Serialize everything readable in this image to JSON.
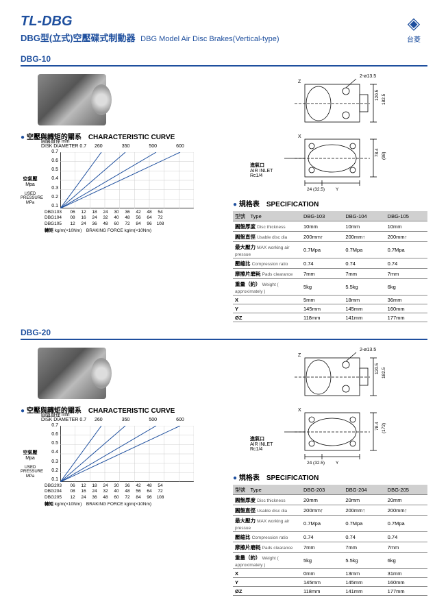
{
  "header": {
    "title": "TL-DBG",
    "subtitle_cn": "DBG型(立式)空壓碟式制動器",
    "subtitle_en": "DBG Model Air Disc Brakes(Vertical-type)",
    "logo_text": "台菱"
  },
  "sections": [
    {
      "model": "DBG-10",
      "curve_title_cn": "空壓與轉矩的關系",
      "curve_title_en": "CHARACTERISTIC CURVE",
      "chart": {
        "disk_label_cn": "圓盤直徑",
        "disk_label_unit": "mm",
        "disk_diameter_label": "DISK DIAMETER 0.7",
        "top_values": [
          "260",
          "350",
          "500",
          "600"
        ],
        "ylabel_cn": "空氣壓",
        "ylabel_unit": "Mpa",
        "ylabel_en": "USED PRESSURE",
        "ylabel_en_unit": "MPa",
        "yticks": [
          "0.7",
          "0.6",
          "0.5",
          "0.4",
          "0.3",
          "0.2",
          "0.1"
        ],
        "xrows": [
          {
            "label": "DBG103",
            "vals": [
              "06",
              "12",
              "18",
              "24",
              "30",
              "36",
              "42",
              "48",
              "54"
            ]
          },
          {
            "label": "DBG104",
            "vals": [
              "08",
              "16",
              "24",
              "32",
              "40",
              "48",
              "56",
              "64",
              "72"
            ]
          },
          {
            "label": "DBG105",
            "vals": [
              "12",
              "24",
              "36",
              "48",
              "60",
              "72",
              "84",
              "96",
              "108"
            ]
          }
        ],
        "xlabel_cn": "轉矩",
        "xlabel_unit": "kg/m(×10Nm)",
        "xlabel_en": "BRAKING FORCE kg/m(×10Nm)",
        "line_color": "#1e4f9e",
        "grid_color": "#ccc"
      },
      "drawing": {
        "callout_top": "2-ø13.5",
        "dim_right1": "120.5",
        "dim_right2": "182.5",
        "dim_bot1": "24 (32.5)",
        "dim_bot2": "Y",
        "dim_right3": "78.4",
        "dim_right4": "(98)",
        "air_inlet_cn": "進氣口",
        "air_inlet_en": "AIR INLET",
        "air_inlet_sub": "Rc1/4",
        "labels": {
          "z": "Z",
          "x": "X"
        }
      },
      "spec": {
        "title_cn": "規格表",
        "title_en": "SPECIFICATION",
        "header": [
          "型號　Type",
          "DBG-103",
          "DBG-104",
          "DBG-105"
        ],
        "rows": [
          {
            "label_cn": "圓盤厚度",
            "label_en": "Disc thickness",
            "vals": [
              "10mm",
              "10mm",
              "10mm"
            ]
          },
          {
            "label_cn": "圓盤直徑",
            "label_en": "Usable disc dia",
            "vals": [
              "200mm↑",
              "200mm↑",
              "200mm↑"
            ]
          },
          {
            "label_cn": "最大壓力",
            "label_en": "MAX working air pressue",
            "vals": [
              "0.7Mpa",
              "0.7Mpa",
              "0.7Mpa"
            ]
          },
          {
            "label_cn": "壓縮比",
            "label_en": "Compression ratio",
            "vals": [
              "0.74",
              "0.74",
              "0.74"
            ]
          },
          {
            "label_cn": "摩擦片磨耗",
            "label_en": "Pads clearance",
            "vals": [
              "7mm",
              "7mm",
              "7mm"
            ]
          },
          {
            "label_cn": "重量（約）",
            "label_en": "Weight ( approximately )",
            "vals": [
              "5kg",
              "5.5kg",
              "6kg"
            ]
          },
          {
            "label_cn": "X",
            "label_en": "",
            "vals": [
              "5mm",
              "18mm",
              "36mm"
            ]
          },
          {
            "label_cn": "Y",
            "label_en": "",
            "vals": [
              "145mm",
              "145mm",
              "160mm"
            ]
          },
          {
            "label_cn": "ØZ",
            "label_en": "",
            "vals": [
              "118mm",
              "141mm",
              "177mm"
            ]
          }
        ]
      }
    },
    {
      "model": "DBG-20",
      "curve_title_cn": "空壓與轉矩的關系",
      "curve_title_en": "CHARACTERISTIC CURVE",
      "chart": {
        "disk_label_cn": "圓盤直徑",
        "disk_label_unit": "mm",
        "disk_diameter_label": "DISK DIAMETER 0.7",
        "top_values": [
          "260",
          "350",
          "500",
          "600"
        ],
        "ylabel_cn": "空氣壓",
        "ylabel_unit": "Mpa",
        "ylabel_en": "USED PRESSURE",
        "ylabel_en_unit": "MPa",
        "yticks": [
          "0.7",
          "0.6",
          "0.5",
          "0.4",
          "0.3",
          "0.2",
          "0.1"
        ],
        "xrows": [
          {
            "label": "DBG203",
            "vals": [
              "06",
              "12",
              "18",
              "24",
              "30",
              "36",
              "42",
              "48",
              "54"
            ]
          },
          {
            "label": "DBG204",
            "vals": [
              "08",
              "16",
              "24",
              "32",
              "40",
              "48",
              "56",
              "64",
              "72"
            ]
          },
          {
            "label": "DBG205",
            "vals": [
              "12",
              "24",
              "36",
              "48",
              "60",
              "72",
              "84",
              "96",
              "108"
            ]
          }
        ],
        "xlabel_cn": "轉矩",
        "xlabel_unit": "kg/m(×10Nm)",
        "xlabel_en": "BRAKING FORCE kg/m(×10Nm)",
        "line_color": "#1e4f9e",
        "grid_color": "#ccc"
      },
      "drawing": {
        "callout_top": "2-ø13.5",
        "dim_right1": "120.5",
        "dim_right2": "182.5",
        "dim_bot1": "24 (32.5)",
        "dim_bot2": "Y",
        "dim_right3": "78.4",
        "dim_right4": "(172)",
        "air_inlet_cn": "進氣口",
        "air_inlet_en": "AIR INLET",
        "air_inlet_sub": "Rc1/4",
        "labels": {
          "z": "Z",
          "x": "X"
        }
      },
      "spec": {
        "title_cn": "規格表",
        "title_en": "SPECIFICATION",
        "header": [
          "型號　Type",
          "DBG-203",
          "DBG-204",
          "DBG-205"
        ],
        "rows": [
          {
            "label_cn": "圓盤厚度",
            "label_en": "Disc thickness",
            "vals": [
              "20mm",
              "20mm",
              "20mm"
            ]
          },
          {
            "label_cn": "圓盤直徑",
            "label_en": "Usable disc dia",
            "vals": [
              "200mm↑",
              "200mm↑",
              "200mm↑"
            ]
          },
          {
            "label_cn": "最大壓力",
            "label_en": "MAX working air pressue",
            "vals": [
              "0.7Mpa",
              "0.7Mpa",
              "0.7Mpa"
            ]
          },
          {
            "label_cn": "壓縮比",
            "label_en": "Compression ratio",
            "vals": [
              "0.74",
              "0.74",
              "0.74"
            ]
          },
          {
            "label_cn": "摩擦片磨耗",
            "label_en": "Pads clearance",
            "vals": [
              "7mm",
              "7mm",
              "7mm"
            ]
          },
          {
            "label_cn": "重量（約）",
            "label_en": "Weight ( approximately )",
            "vals": [
              "5kg",
              "5.5kg",
              "6kg"
            ]
          },
          {
            "label_cn": "X",
            "label_en": "",
            "vals": [
              "0mm",
              "13mm",
              "31mm"
            ]
          },
          {
            "label_cn": "Y",
            "label_en": "",
            "vals": [
              "145mm",
              "145mm",
              "160mm"
            ]
          },
          {
            "label_cn": "ØZ",
            "label_en": "",
            "vals": [
              "118mm",
              "141mm",
              "177mm"
            ]
          }
        ]
      }
    }
  ]
}
